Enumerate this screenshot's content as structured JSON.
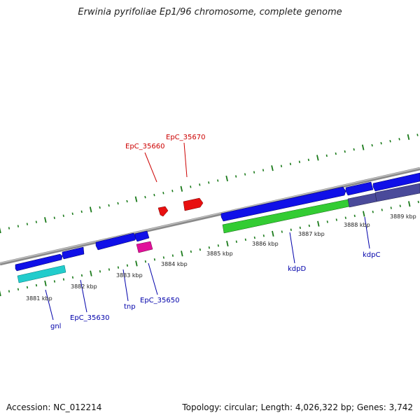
{
  "title": "Erwinia pyrifoliae Ep1/96 chromosome, complete genome",
  "footer": {
    "accession": "Accession: NC_012214",
    "summary": "Topology: circular; Length: 4,026,322 bp; Genes: 3,742"
  },
  "colors": {
    "backbone": "#8a8a8a",
    "tick": "#1a7a1a",
    "blue": "#1010e8",
    "red": "#e81010",
    "cyan": "#22cccc",
    "magenta": "#e0109a",
    "green": "#33cc33",
    "slate": "#4a4a9a",
    "label_blue": "#0000aa",
    "label_red": "#cc0000"
  },
  "kbp_labels": [
    "3881 kbp",
    "3882 kbp",
    "3883 kbp",
    "3884 kbp",
    "3885 kbp",
    "3886 kbp",
    "3887 kbp",
    "3888 kbp",
    "3889 kbp"
  ],
  "gene_labels": [
    {
      "id": "gnl",
      "text": "gnl",
      "color": "blue"
    },
    {
      "id": "epc35630",
      "text": "EpC_35630",
      "color": "blue"
    },
    {
      "id": "tnp",
      "text": "tnp",
      "color": "blue"
    },
    {
      "id": "epc35650",
      "text": "EpC_35650",
      "color": "blue"
    },
    {
      "id": "kdpd",
      "text": "kdpD",
      "color": "blue"
    },
    {
      "id": "kdpc",
      "text": "kdpC",
      "color": "blue"
    },
    {
      "id": "epc35660",
      "text": "EpC_35660",
      "color": "red"
    },
    {
      "id": "epc35670",
      "text": "EpC_35670",
      "color": "red"
    }
  ]
}
